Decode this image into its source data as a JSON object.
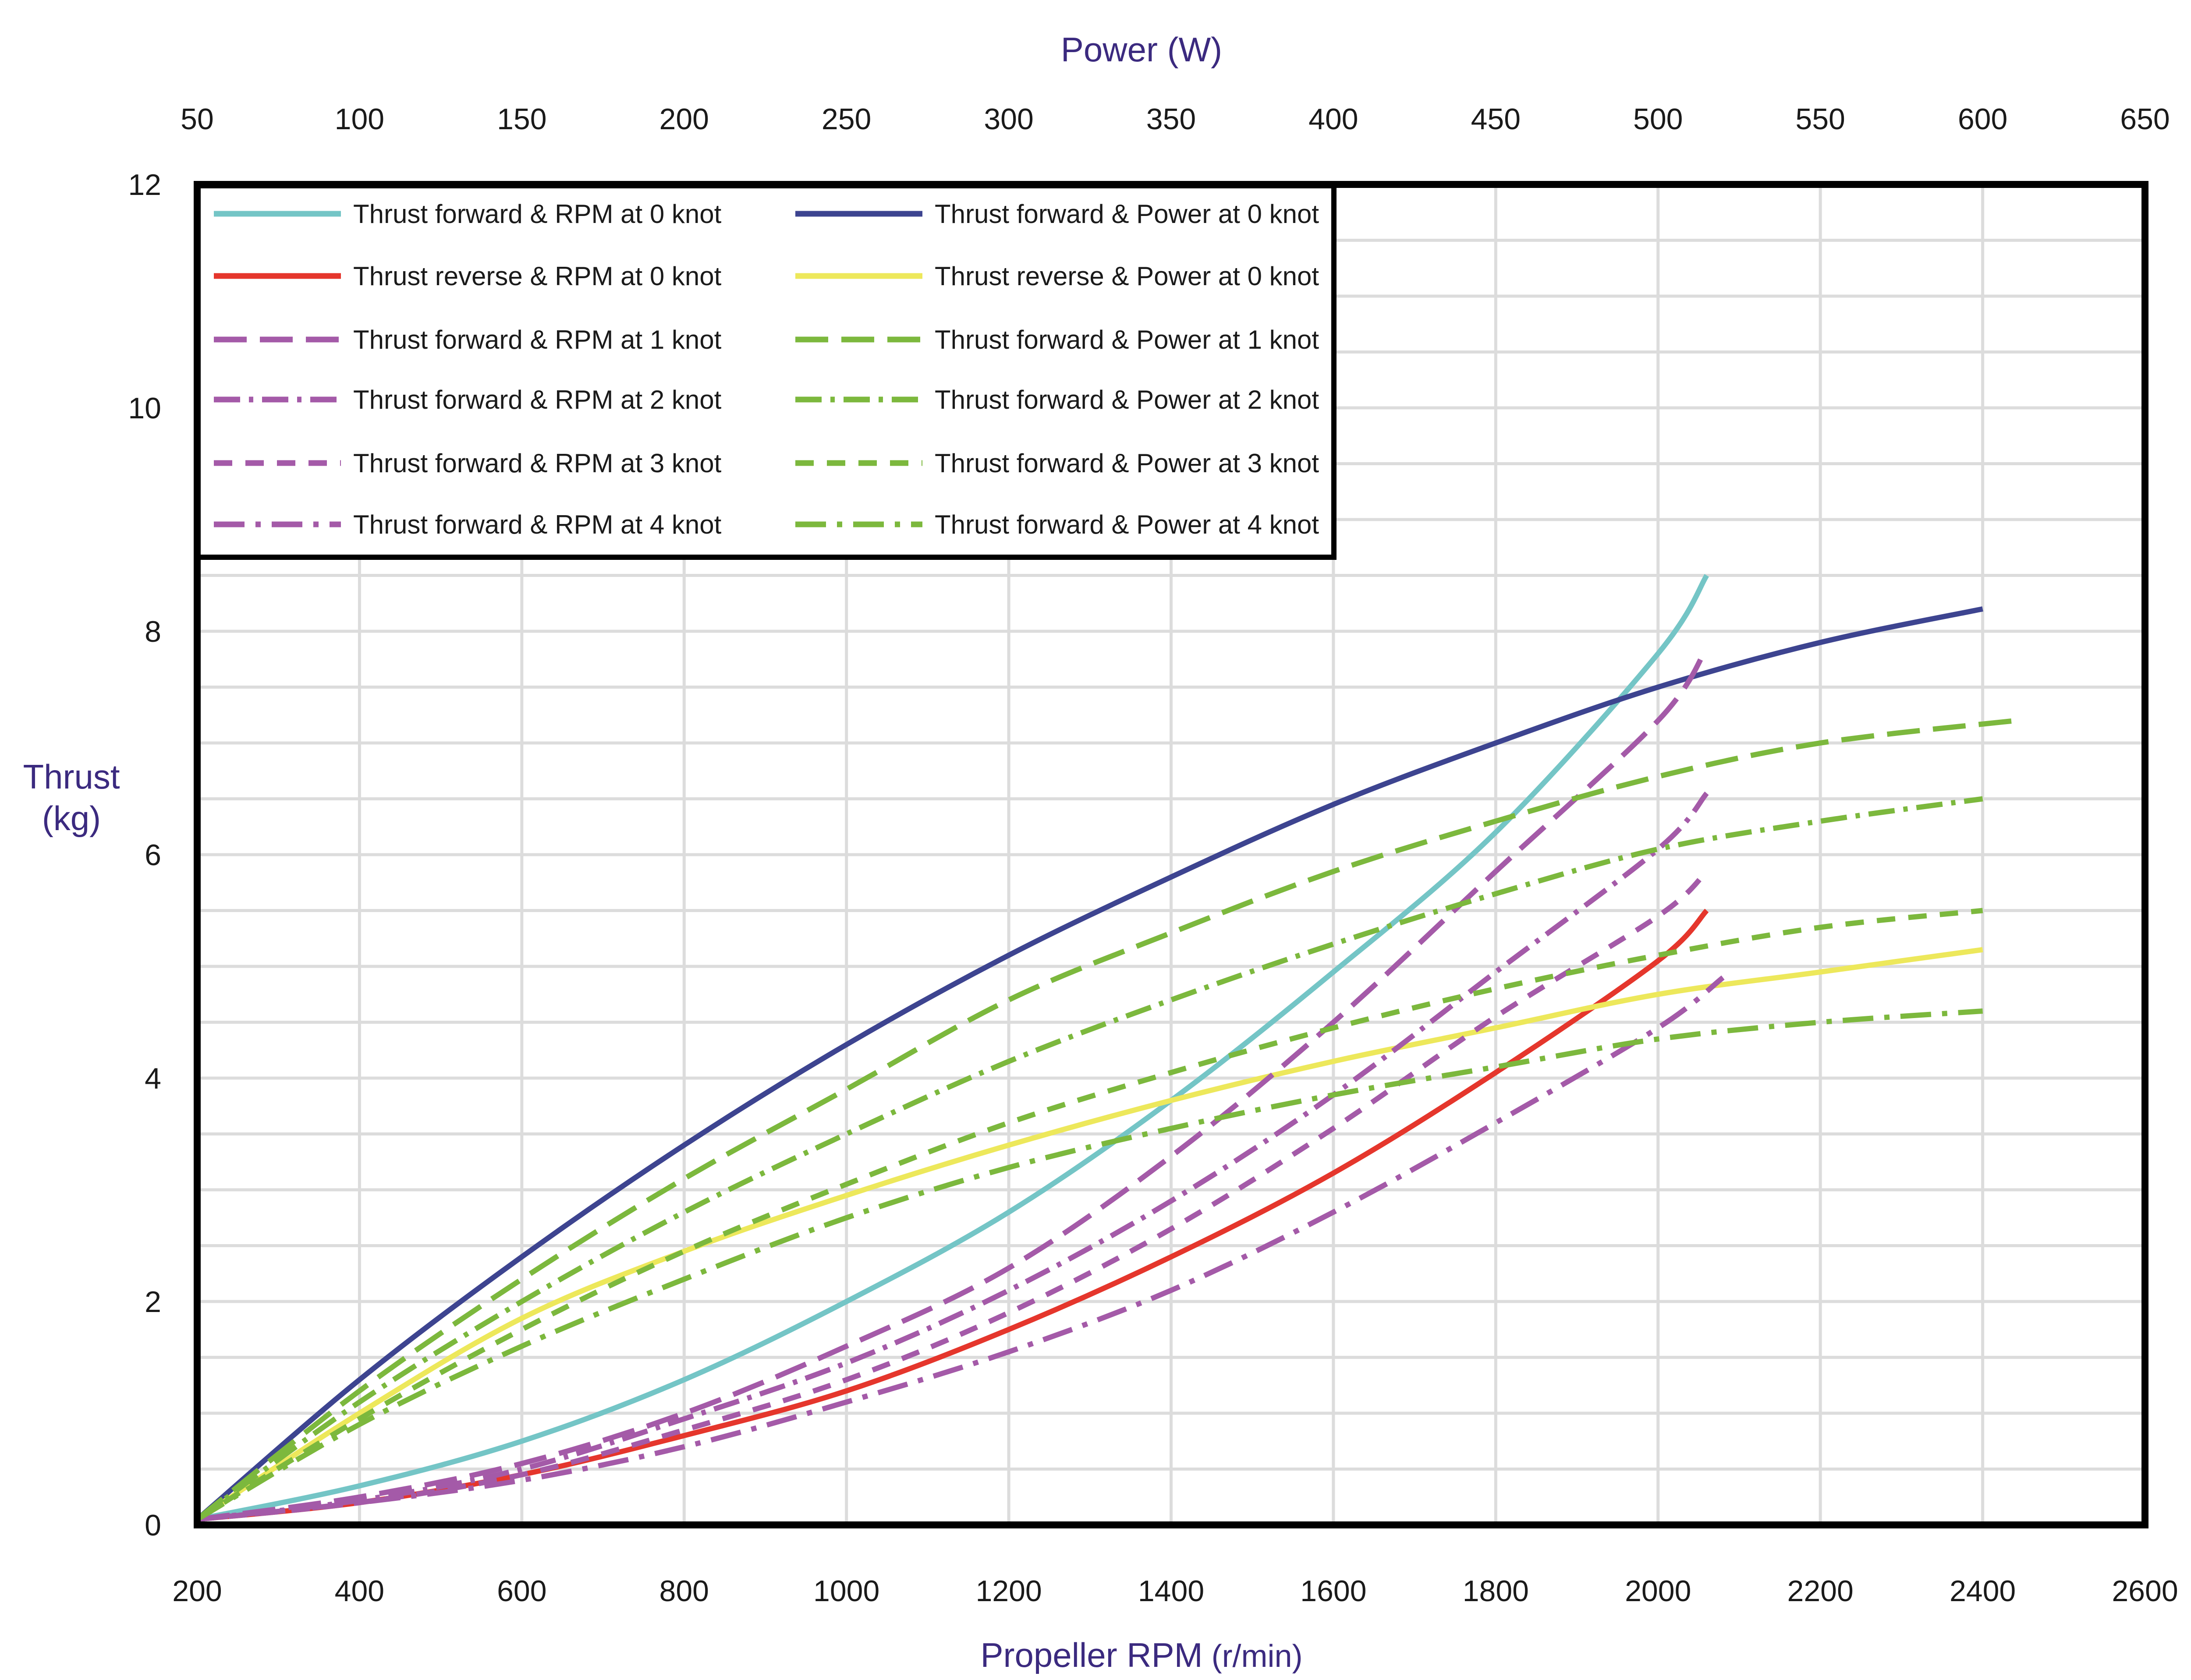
{
  "chart_data": {
    "type": "line",
    "title": "",
    "top_axis": {
      "label": "Power (W)",
      "ticks": [
        "50",
        "100",
        "150",
        "200",
        "250",
        "300",
        "350",
        "400",
        "450",
        "500",
        "550",
        "600",
        "650"
      ],
      "range": [
        50,
        650
      ]
    },
    "bottom_axis": {
      "label_main": "Propeller RPM",
      "label_unit": "(r/min)",
      "ticks": [
        "200",
        "400",
        "600",
        "800",
        "1000",
        "1200",
        "1400",
        "1600",
        "1800",
        "2000",
        "2200",
        "2400",
        "2600"
      ],
      "range": [
        200,
        2600
      ]
    },
    "y_axis": {
      "label_line1": "Thrust",
      "label_line2": "(kg)",
      "ticks": [
        "0",
        "2",
        "4",
        "6",
        "8",
        "10",
        "12"
      ],
      "range": [
        0,
        12
      ]
    },
    "grid": true,
    "legend": {
      "position": "top-left"
    },
    "series": [
      {
        "name": "Thrust forward &  RPM at 0 knot",
        "axis": "rpm",
        "color": "#74c5c6",
        "dash": "solid",
        "points": [
          [
            200,
            0.05
          ],
          [
            400,
            0.35
          ],
          [
            600,
            0.75
          ],
          [
            800,
            1.3
          ],
          [
            1000,
            2.0
          ],
          [
            1200,
            2.8
          ],
          [
            1400,
            3.8
          ],
          [
            1600,
            4.95
          ],
          [
            1800,
            6.2
          ],
          [
            2000,
            7.8
          ],
          [
            2060,
            8.5
          ]
        ]
      },
      {
        "name": "Thrust forward & Power at 0 knot",
        "axis": "power",
        "color": "#3d4490",
        "dash": "solid",
        "points": [
          [
            50,
            0.05
          ],
          [
            100,
            1.3
          ],
          [
            150,
            2.4
          ],
          [
            200,
            3.4
          ],
          [
            250,
            4.3
          ],
          [
            300,
            5.1
          ],
          [
            350,
            5.8
          ],
          [
            400,
            6.45
          ],
          [
            450,
            7.0
          ],
          [
            500,
            7.5
          ],
          [
            550,
            7.9
          ],
          [
            600,
            8.2
          ]
        ]
      },
      {
        "name": "Thrust reverse  &  RPM at 0 knot",
        "axis": "rpm",
        "color": "#e5362c",
        "dash": "solid",
        "points": [
          [
            200,
            0.05
          ],
          [
            400,
            0.2
          ],
          [
            600,
            0.45
          ],
          [
            800,
            0.8
          ],
          [
            1000,
            1.2
          ],
          [
            1200,
            1.75
          ],
          [
            1400,
            2.4
          ],
          [
            1600,
            3.15
          ],
          [
            1800,
            4.05
          ],
          [
            2000,
            5.05
          ],
          [
            2060,
            5.5
          ]
        ]
      },
      {
        "name": "Thrust reverse & Power at 0 knot",
        "axis": "power",
        "color": "#ede85b",
        "dash": "solid",
        "points": [
          [
            50,
            0.05
          ],
          [
            100,
            1.0
          ],
          [
            150,
            1.85
          ],
          [
            200,
            2.45
          ],
          [
            250,
            2.95
          ],
          [
            300,
            3.4
          ],
          [
            350,
            3.8
          ],
          [
            400,
            4.15
          ],
          [
            450,
            4.45
          ],
          [
            500,
            4.75
          ],
          [
            550,
            4.95
          ],
          [
            600,
            5.15
          ]
        ]
      },
      {
        "name": "Thrust forward &  RPM at 1 knot",
        "axis": "rpm",
        "color": "#a45aa8",
        "dash": "longdash",
        "points": [
          [
            200,
            0.05
          ],
          [
            400,
            0.25
          ],
          [
            600,
            0.55
          ],
          [
            800,
            1.0
          ],
          [
            1000,
            1.6
          ],
          [
            1200,
            2.3
          ],
          [
            1400,
            3.3
          ],
          [
            1600,
            4.5
          ],
          [
            1800,
            5.85
          ],
          [
            2000,
            7.2
          ],
          [
            2060,
            7.85
          ]
        ]
      },
      {
        "name": "Thrust forward & Power at 1 knot",
        "axis": "power",
        "color": "#7cb83d",
        "dash": "longdash",
        "points": [
          [
            50,
            0.05
          ],
          [
            100,
            1.2
          ],
          [
            150,
            2.2
          ],
          [
            200,
            3.1
          ],
          [
            250,
            3.9
          ],
          [
            300,
            4.7
          ],
          [
            350,
            5.3
          ],
          [
            400,
            5.85
          ],
          [
            450,
            6.3
          ],
          [
            500,
            6.7
          ],
          [
            550,
            7.0
          ],
          [
            610,
            7.2
          ]
        ]
      },
      {
        "name": "Thrust forward &  RPM at 2 knot",
        "axis": "rpm",
        "color": "#a45aa8",
        "dash": "dashdot",
        "points": [
          [
            200,
            0.05
          ],
          [
            400,
            0.22
          ],
          [
            600,
            0.5
          ],
          [
            800,
            0.95
          ],
          [
            1000,
            1.45
          ],
          [
            1200,
            2.1
          ],
          [
            1400,
            2.9
          ],
          [
            1600,
            3.85
          ],
          [
            1800,
            4.95
          ],
          [
            2000,
            6.05
          ],
          [
            2060,
            6.55
          ]
        ]
      },
      {
        "name": "Thrust forward & Power at 2 knot",
        "axis": "power",
        "color": "#7cb83d",
        "dash": "dashdot",
        "points": [
          [
            50,
            0.05
          ],
          [
            100,
            1.1
          ],
          [
            150,
            2.0
          ],
          [
            200,
            2.8
          ],
          [
            250,
            3.5
          ],
          [
            300,
            4.15
          ],
          [
            350,
            4.7
          ],
          [
            400,
            5.2
          ],
          [
            450,
            5.65
          ],
          [
            500,
            6.05
          ],
          [
            550,
            6.3
          ],
          [
            600,
            6.5
          ]
        ]
      },
      {
        "name": "Thrust forward &  RPM at 3 knot",
        "axis": "rpm",
        "color": "#a45aa8",
        "dash": "shortdash",
        "points": [
          [
            200,
            0.05
          ],
          [
            400,
            0.2
          ],
          [
            600,
            0.45
          ],
          [
            800,
            0.85
          ],
          [
            1000,
            1.3
          ],
          [
            1200,
            1.9
          ],
          [
            1400,
            2.65
          ],
          [
            1600,
            3.55
          ],
          [
            1800,
            4.55
          ],
          [
            2000,
            5.45
          ],
          [
            2060,
            5.85
          ]
        ]
      },
      {
        "name": "Thrust forward & Power at 3 knot",
        "axis": "power",
        "color": "#7cb83d",
        "dash": "shortdash",
        "points": [
          [
            50,
            0.05
          ],
          [
            100,
            0.95
          ],
          [
            150,
            1.75
          ],
          [
            200,
            2.45
          ],
          [
            250,
            3.05
          ],
          [
            300,
            3.6
          ],
          [
            350,
            4.05
          ],
          [
            400,
            4.45
          ],
          [
            450,
            4.8
          ],
          [
            500,
            5.1
          ],
          [
            550,
            5.35
          ],
          [
            600,
            5.5
          ]
        ]
      },
      {
        "name": "Thrust forward &  RPM at 4 knot",
        "axis": "rpm",
        "color": "#a45aa8",
        "dash": "dashdot2",
        "points": [
          [
            200,
            0.05
          ],
          [
            400,
            0.2
          ],
          [
            600,
            0.4
          ],
          [
            800,
            0.7
          ],
          [
            1000,
            1.1
          ],
          [
            1200,
            1.55
          ],
          [
            1400,
            2.1
          ],
          [
            1600,
            2.8
          ],
          [
            1800,
            3.6
          ],
          [
            2000,
            4.45
          ],
          [
            2080,
            4.9
          ]
        ]
      },
      {
        "name": "Thrust forward & Power at 4 knot",
        "axis": "power",
        "color": "#7cb83d",
        "dash": "dashdot2",
        "points": [
          [
            50,
            0.05
          ],
          [
            100,
            0.9
          ],
          [
            150,
            1.6
          ],
          [
            200,
            2.2
          ],
          [
            250,
            2.75
          ],
          [
            300,
            3.2
          ],
          [
            350,
            3.55
          ],
          [
            400,
            3.85
          ],
          [
            450,
            4.1
          ],
          [
            500,
            4.35
          ],
          [
            550,
            4.5
          ],
          [
            600,
            4.6
          ]
        ]
      }
    ]
  }
}
